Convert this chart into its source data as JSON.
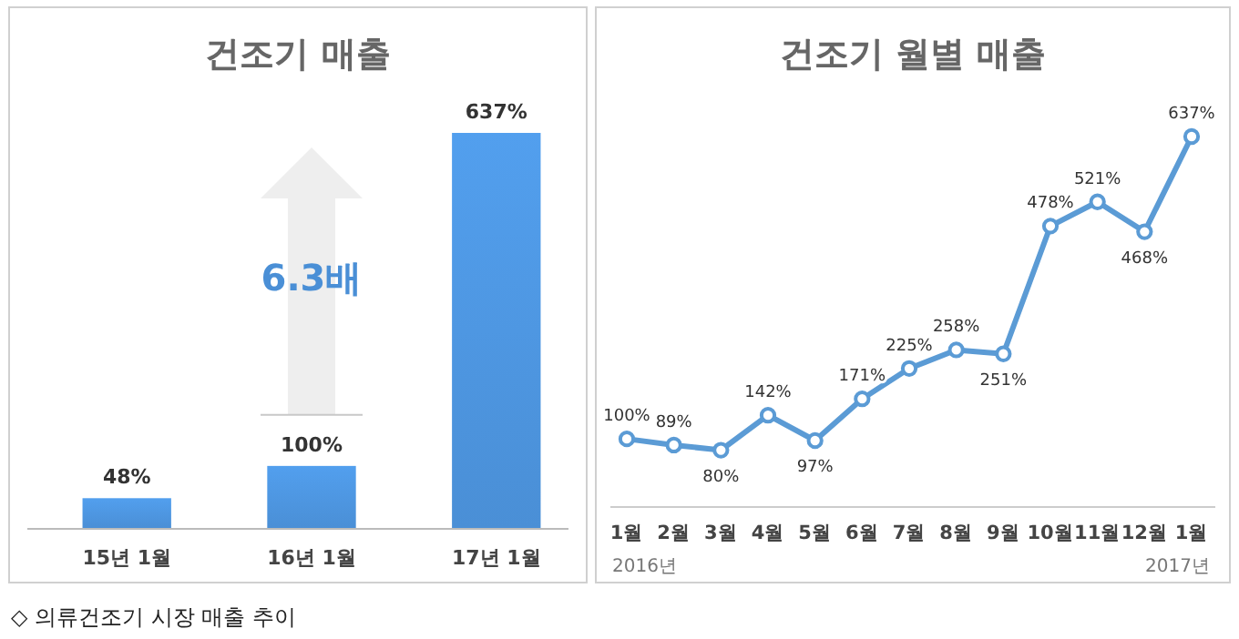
{
  "chart_data": [
    {
      "type": "bar",
      "title": "건조기 매출",
      "categories": [
        "15년 1월",
        "16년 1월",
        "17년 1월"
      ],
      "values": [
        48,
        100,
        637
      ],
      "value_labels": [
        "48%",
        "100%",
        "637%"
      ],
      "color": "#4a8fd6",
      "annotations": [
        "6.3배",
        "◇ 의류건조기 시장 매출 추이"
      ]
    },
    {
      "type": "line",
      "title": "건조기 월별 매출",
      "categories": [
        "1월",
        "2월",
        "3월",
        "4월",
        "5월",
        "6월",
        "7월",
        "8월",
        "9월",
        "10월",
        "11월",
        "12월",
        "1월"
      ],
      "series": [
        {
          "color": "#5b9bd5",
          "values": [
            100,
            89,
            80,
            142,
            97,
            171,
            225,
            258,
            251,
            478,
            521,
            468,
            637
          ],
          "value_labels": [
            "100%",
            "89%",
            "80%",
            "142%",
            "97%",
            "171%",
            "225%",
            "258%",
            "251%",
            "478%",
            "521%",
            "468%",
            "637%"
          ]
        }
      ],
      "marker": "circle",
      "annotations": [
        "2016년",
        "2017년"
      ]
    }
  ]
}
